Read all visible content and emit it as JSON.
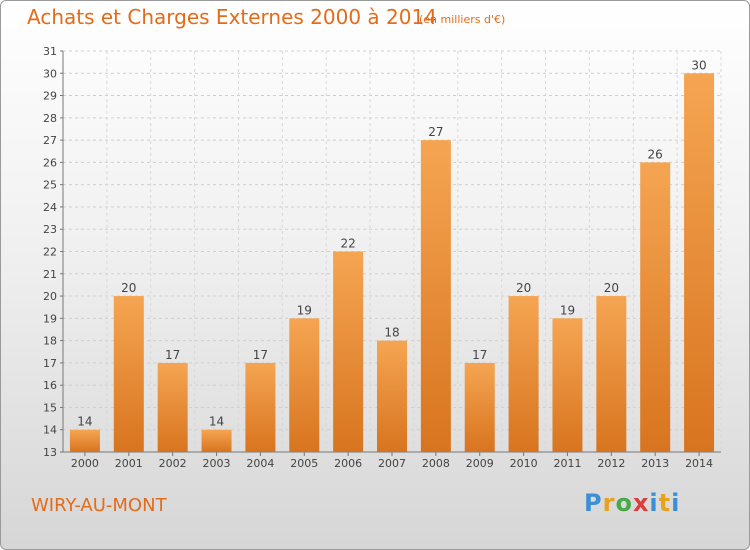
{
  "title": "Achats et Charges Externes 2000 à 2014",
  "subtitle": "(en milliers d'€)",
  "commune": "WIRY-AU-MONT",
  "logo": "Proxiti",
  "colors": {
    "accent": "#e36c1a",
    "bar_top": "#f5a552",
    "bar_bottom": "#d8741f"
  },
  "chart_data": {
    "type": "bar",
    "title": "Achats et Charges Externes 2000 à 2014",
    "subtitle": "(en milliers d'€)",
    "categories": [
      "2000",
      "2001",
      "2002",
      "2003",
      "2004",
      "2005",
      "2006",
      "2007",
      "2008",
      "2009",
      "2010",
      "2011",
      "2012",
      "2013",
      "2014"
    ],
    "values": [
      14,
      20,
      17,
      14,
      17,
      19,
      22,
      18,
      27,
      17,
      20,
      19,
      20,
      26,
      30
    ],
    "ylim": [
      13,
      31
    ],
    "yticks": [
      13,
      14,
      15,
      16,
      17,
      18,
      19,
      20,
      21,
      22,
      23,
      24,
      25,
      26,
      27,
      28,
      29,
      30,
      31
    ],
    "grid": true,
    "data_labels": true
  }
}
